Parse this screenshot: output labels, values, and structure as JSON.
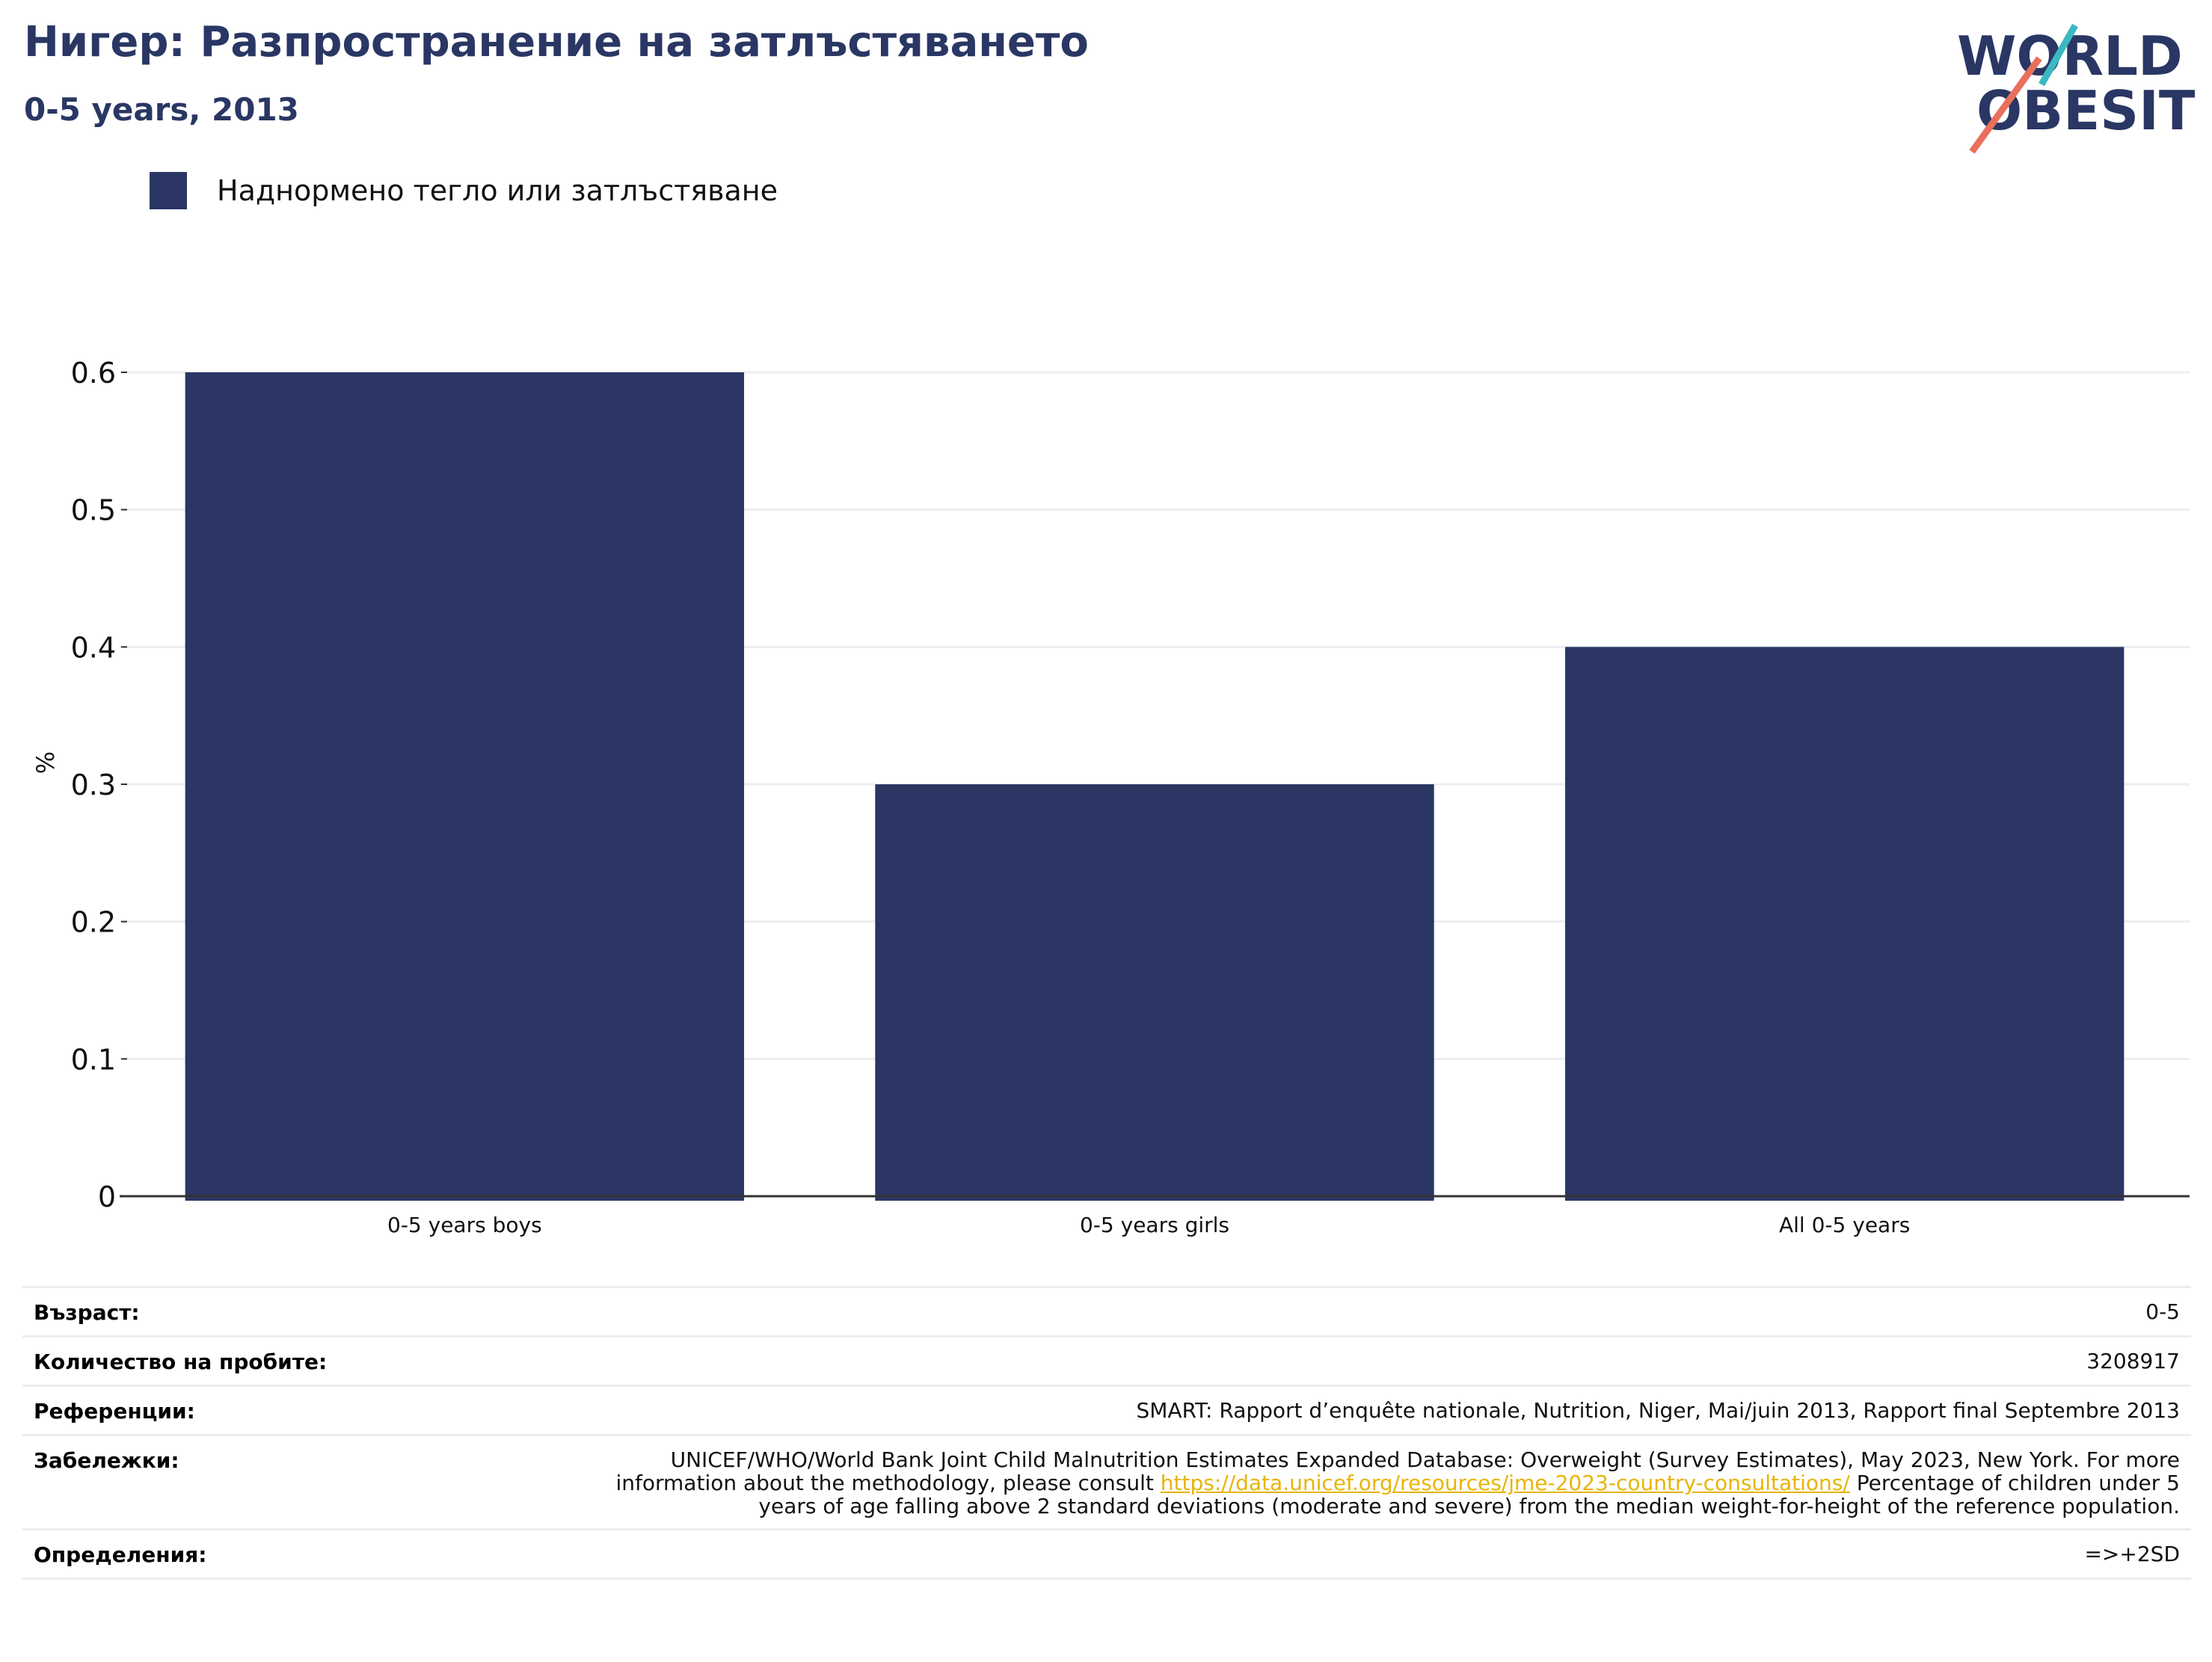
{
  "title": "Нигер: Разпространение на затлъстяването",
  "subtitle": "0-5 years, 2013",
  "logo": {
    "line1": "WORLD",
    "line2": "OBESITY"
  },
  "colors": {
    "title": "#2a3764",
    "bar": "#2b3664",
    "logo_dark": "#2a3764",
    "logo_teal": "#3bb8c3",
    "logo_coral": "#e8705d",
    "link": "#e8b400",
    "grid": "#ebedf0"
  },
  "legend": {
    "label": "Наднормено тегло или затлъстяване"
  },
  "chart_data": {
    "type": "bar",
    "categories": [
      "0-5 years boys",
      "0-5 years girls",
      "All 0-5 years"
    ],
    "series": [
      {
        "name": "Наднормено тегло или затлъстяване",
        "values": [
          0.6,
          0.3,
          0.4
        ]
      }
    ],
    "ylabel": "%",
    "ylim": [
      0,
      0.6
    ],
    "yticks": [
      "0",
      "0.1",
      "0.2",
      "0.3",
      "0.4",
      "0.5",
      "0.6"
    ],
    "grid": true,
    "legend_position": "top-left"
  },
  "info": [
    {
      "label": "Възраст:",
      "value": "0-5"
    },
    {
      "label": "Количество на пробите:",
      "value": "3208917"
    },
    {
      "label": "Референции:",
      "value": "SMART: Rapport d’enquête nationale, Nutrition, Niger, Mai/juin 2013, Rapport final Septembre 2013"
    },
    {
      "label": "Забележки:",
      "value_before": "UNICEF/WHO/World Bank Joint Child Malnutrition Estimates Expanded Database: Overweight (Survey Estimates), May 2023, New York. For more information about the methodology, please consult ",
      "link": "https://data.unicef.org/resources/jme-2023-country-consultations/",
      "value_after": " Percentage of children under 5 years of age falling above 2 standard deviations (moderate and severe) from the median weight-for-height of the reference population."
    },
    {
      "label": "Определения:",
      "value": "=>+2SD"
    }
  ]
}
